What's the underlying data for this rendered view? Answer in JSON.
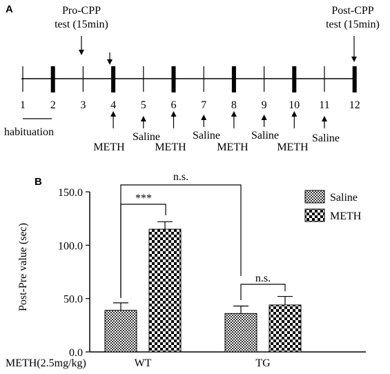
{
  "panel_a": {
    "label": "A",
    "days": [
      "1",
      "2",
      "3",
      "4",
      "5",
      "6",
      "7",
      "8",
      "9",
      "10",
      "11",
      "12"
    ],
    "pre_test": "Pro-CPP",
    "pre_test_duration": "test (15min)",
    "post_test": "Post-CPP",
    "post_test_duration": "test (15min)",
    "habituation": "habituation",
    "meth": "METH",
    "saline": "Saline"
  },
  "panel_b": {
    "label": "B",
    "xrow_label": "METH(2.5mg/kg)",
    "sig_wt": "***",
    "sig_between": "n.s.",
    "sig_tg": "n.s."
  },
  "chart_data": {
    "type": "bar",
    "categories": [
      "WT",
      "TG"
    ],
    "series": [
      {
        "name": "Saline",
        "values": [
          39,
          36
        ],
        "errors": [
          7,
          7
        ]
      },
      {
        "name": "METH",
        "values": [
          115,
          44
        ],
        "errors": [
          7,
          8
        ]
      }
    ],
    "ylabel": "Post-Pre value (sec)",
    "ylim": [
      0,
      150
    ],
    "yticks": [
      "0.0",
      "50.0",
      "100.0",
      "150.0"
    ],
    "ytick_values": [
      0,
      50,
      100,
      150
    ],
    "legend_position": "top-right"
  }
}
